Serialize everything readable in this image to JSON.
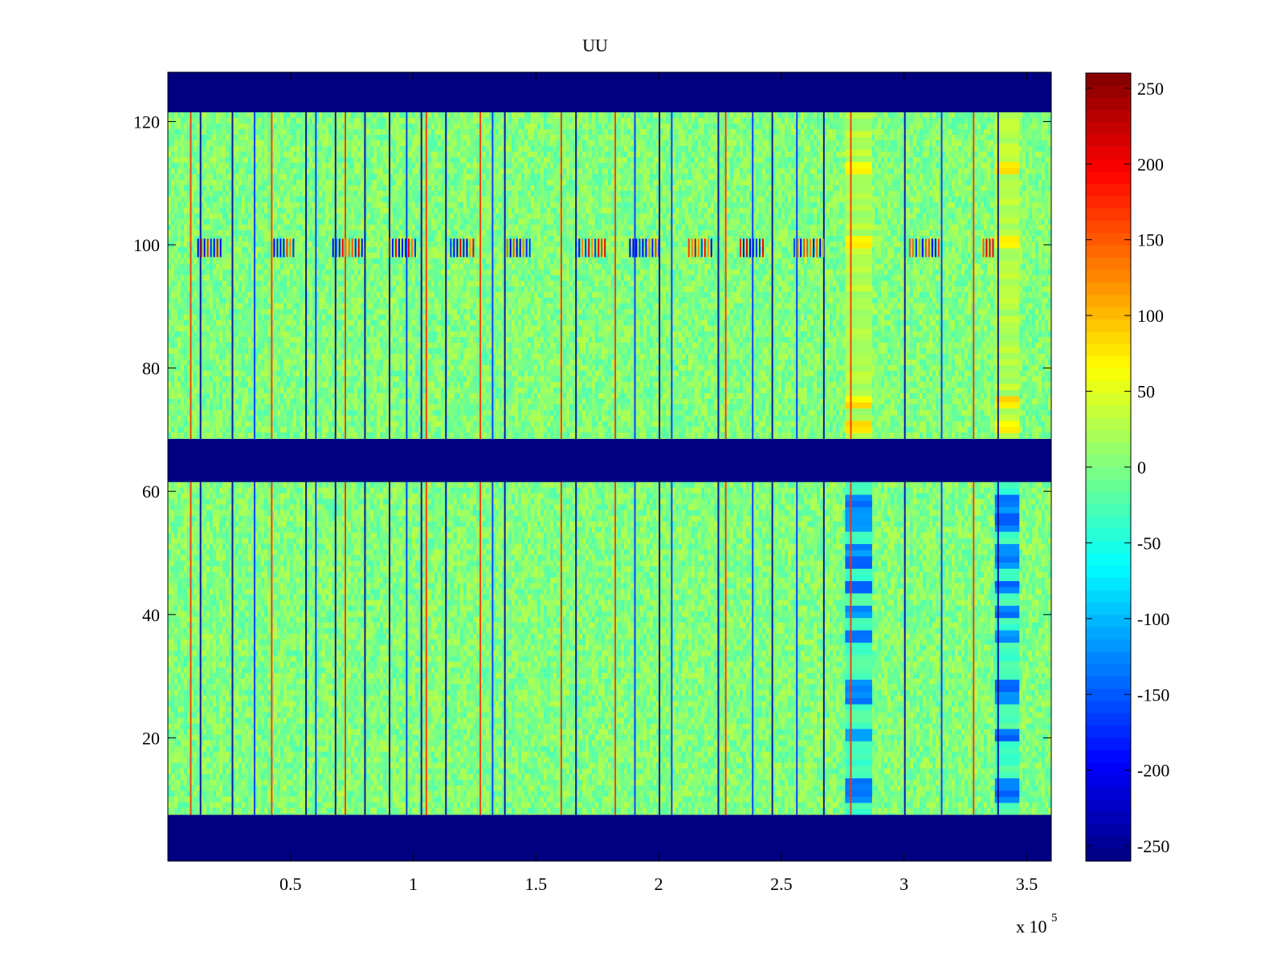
{
  "chart_data": {
    "type": "heatmap",
    "title": "UU",
    "xlabel": "",
    "ylabel": "",
    "x_exponent_label": "x 10",
    "x_exponent_power": "5",
    "xlim": [
      0,
      3.6
    ],
    "ylim": [
      0,
      128
    ],
    "x_ticks": [
      0.5,
      1,
      1.5,
      2,
      2.5,
      3,
      3.5
    ],
    "x_tick_labels": [
      "0.5",
      "1",
      "1.5",
      "2",
      "2.5",
      "3",
      "3.5"
    ],
    "y_ticks": [
      20,
      40,
      60,
      80,
      100,
      120
    ],
    "y_tick_labels": [
      "20",
      "40",
      "60",
      "80",
      "100",
      "120"
    ],
    "colormap": "jet",
    "clim": [
      -260,
      260
    ],
    "colorbar_ticks": [
      250,
      200,
      150,
      100,
      50,
      0,
      -50,
      -100,
      -150,
      -200,
      -250
    ],
    "colorbar_tick_labels": [
      "250",
      "200",
      "150",
      "100",
      "50",
      "0",
      "-50",
      "-100",
      "-150",
      "-200",
      "-250"
    ],
    "background_value": 2,
    "noise_amplitude": 28,
    "masked_bands": [
      {
        "y": [
          0,
          7.5
        ],
        "value": -260
      },
      {
        "y": [
          61.5,
          68.5
        ],
        "value": -260
      },
      {
        "y": [
          121.5,
          128
        ],
        "value": -260
      }
    ],
    "data_bands": [
      {
        "y": [
          7.5,
          61.5
        ]
      },
      {
        "y": [
          68.5,
          121.5
        ]
      }
    ],
    "dark_column_x": [
      0.13,
      0.26,
      0.56,
      0.68,
      0.8,
      0.9,
      1.03,
      1.13,
      1.37,
      1.66,
      2.0,
      2.24,
      2.46,
      2.67,
      3.0,
      3.38
    ],
    "red_column_x": [
      0.09,
      0.42,
      0.72,
      1.05,
      1.27,
      1.6,
      1.82,
      2.27,
      2.78,
      3.28
    ],
    "blue_column_x": [
      0.35,
      0.6,
      0.97,
      1.32,
      1.9,
      2.05,
      2.38,
      2.56,
      3.15
    ],
    "row_100_bursts_x": [
      [
        0.12,
        0.22
      ],
      [
        0.43,
        0.52
      ],
      [
        0.67,
        0.8
      ],
      [
        0.9,
        1.01
      ],
      [
        1.15,
        1.25
      ],
      [
        1.38,
        1.48
      ],
      [
        1.66,
        1.78
      ],
      [
        1.88,
        2.0
      ],
      [
        2.12,
        2.22
      ],
      [
        2.33,
        2.43
      ],
      [
        2.55,
        2.67
      ],
      [
        3.02,
        3.15
      ],
      [
        3.32,
        3.36
      ]
    ],
    "event_columns_x": [
      [
        2.76,
        2.87
      ],
      [
        3.37,
        3.47
      ]
    ],
    "event_rows_negative_y": [
      10,
      12,
      20,
      26,
      28,
      36,
      40,
      44,
      48,
      50,
      54,
      56,
      58
    ],
    "event_rows_positive_y": [
      70,
      74,
      100,
      112
    ]
  }
}
